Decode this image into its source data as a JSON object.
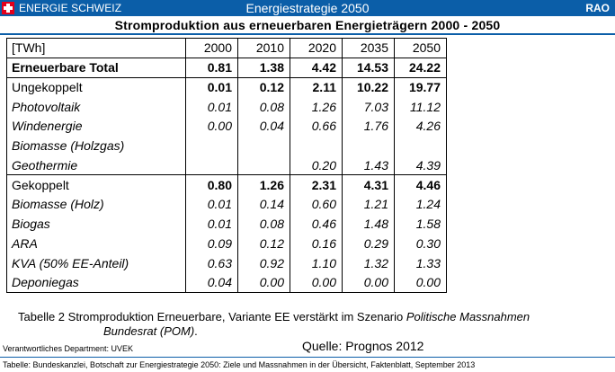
{
  "header": {
    "brand": "ENERGIE SCHWEIZ",
    "title": "Energiestrategie 2050",
    "right_label": "RAO",
    "brand_color": "#0b5ea8",
    "flag_icon": "swiss-cross-icon"
  },
  "subtitle": "Stromproduktion aus erneuerbaren Energieträgern 2000 - 2050",
  "table": {
    "columns": [
      "[TWh]",
      "2000",
      "2010",
      "2020",
      "2035",
      "2050"
    ],
    "total": {
      "label": "Erneuerbare Total",
      "values": [
        "0.81",
        "1.38",
        "4.42",
        "14.53",
        "24.22"
      ]
    },
    "group1": {
      "label": "Ungekoppelt",
      "values": [
        "0.01",
        "0.12",
        "2.11",
        "10.22",
        "19.77"
      ],
      "rows": [
        {
          "label": "Photovoltaik",
          "values": [
            "0.01",
            "0.08",
            "1.26",
            "7.03",
            "11.12"
          ]
        },
        {
          "label": "Windenergie",
          "values": [
            "0.00",
            "0.04",
            "0.66",
            "1.76",
            "4.26"
          ]
        },
        {
          "label": "Biomasse (Holzgas)",
          "values": [
            "",
            "",
            "",
            "",
            ""
          ]
        },
        {
          "label": "Geothermie",
          "values": [
            "",
            "",
            "0.20",
            "1.43",
            "4.39"
          ]
        }
      ]
    },
    "group2": {
      "label": "Gekoppelt",
      "values": [
        "0.80",
        "1.26",
        "2.31",
        "4.31",
        "4.46"
      ],
      "rows": [
        {
          "label": "Biomasse (Holz)",
          "values": [
            "0.01",
            "0.14",
            "0.60",
            "1.21",
            "1.24"
          ]
        },
        {
          "label": "Biogas",
          "values": [
            "0.01",
            "0.08",
            "0.46",
            "1.48",
            "1.58"
          ]
        },
        {
          "label": "ARA",
          "values": [
            "0.09",
            "0.12",
            "0.16",
            "0.29",
            "0.30"
          ]
        },
        {
          "label": "KVA (50% EE-Anteil)",
          "values": [
            "0.63",
            "0.92",
            "1.10",
            "1.32",
            "1.33"
          ]
        },
        {
          "label": "Deponiegas",
          "values": [
            "0.04",
            "0.00",
            "0.00",
            "0.00",
            "0.00"
          ]
        }
      ]
    }
  },
  "caption": {
    "lead": "Tabelle 2 Stromproduktion Erneuerbare, Variante EE verstärkt im Szenario ",
    "scenario_italic": "Politische Massnahmen",
    "line2_italic": "Bundesrat (POM)",
    "line2_end": "."
  },
  "footer": {
    "department": "Verantwortliches Department: UVEK",
    "quelle": "Quelle: Prognos 2012",
    "source": "Tabelle: Bundeskanzlei, Botschaft zur Energiestrategie 2050: Ziele und Massnahmen in der Übersicht, Faktenblatt, September 2013"
  }
}
